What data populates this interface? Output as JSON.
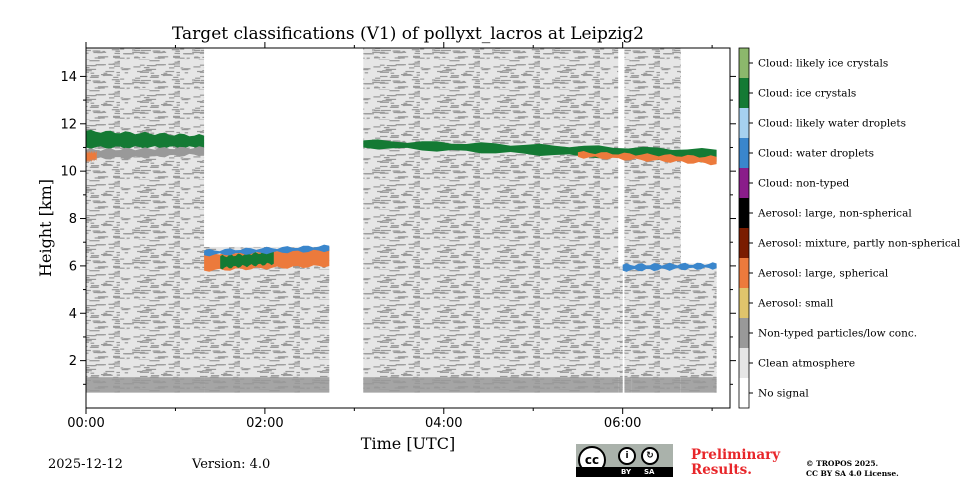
{
  "chart_data": {
    "type": "heatmap",
    "title": "Target classifications (V1) of pollyxt_lacros at Leipzig2",
    "xlabel": "Time [UTC]",
    "ylabel": "Height [km]",
    "xlim": [
      0,
      7.2
    ],
    "ylim": [
      0,
      15.2
    ],
    "x_ticks": [
      {
        "value": 0,
        "label": "00:00"
      },
      {
        "value": 2,
        "label": "02:00"
      },
      {
        "value": 4,
        "label": "04:00"
      },
      {
        "value": 6,
        "label": "06:00"
      }
    ],
    "y_ticks": [
      {
        "value": 2,
        "label": "2"
      },
      {
        "value": 4,
        "label": "4"
      },
      {
        "value": 6,
        "label": "6"
      },
      {
        "value": 8,
        "label": "8"
      },
      {
        "value": 10,
        "label": "10"
      },
      {
        "value": 12,
        "label": "12"
      },
      {
        "value": 14,
        "label": "14"
      }
    ],
    "classes": [
      {
        "value": 0,
        "name": "No signal",
        "color": "#ffffff"
      },
      {
        "value": 1,
        "name": "Clean atmosphere",
        "color": "#e6e6e6"
      },
      {
        "value": 2,
        "name": "Non-typed particles/low conc.",
        "color": "#999999"
      },
      {
        "value": 3,
        "name": "Aerosol: small",
        "color": "#e0c46c"
      },
      {
        "value": 4,
        "name": "Aerosol: large, spherical",
        "color": "#ec7a3c"
      },
      {
        "value": 5,
        "name": "Aerosol: mixture, partly non-spherical",
        "color": "#7a1c00"
      },
      {
        "value": 6,
        "name": "Aerosol: large, non-spherical",
        "color": "#000000"
      },
      {
        "value": 7,
        "name": "Cloud: non-typed",
        "color": "#8a1d8a"
      },
      {
        "value": 8,
        "name": "Cloud: water droplets",
        "color": "#3a86cc"
      },
      {
        "value": 9,
        "name": "Cloud: likely water droplets",
        "color": "#a6d1f0"
      },
      {
        "value": 10,
        "name": "Cloud: ice crystals",
        "color": "#147a34"
      },
      {
        "value": 11,
        "name": "Cloud: likely ice crystals",
        "color": "#8cb86c"
      }
    ],
    "data_segments": [
      {
        "t_start": 0.0,
        "t_end": 1.32,
        "signal_top": 15.2
      },
      {
        "t_start": 1.32,
        "t_end": 2.72,
        "signal_top": 6.8
      },
      {
        "t_start": 3.1,
        "t_end": 5.95,
        "signal_top": 15.2
      },
      {
        "t_start": 5.95,
        "t_end": 6.0,
        "signal_top": 6.0
      },
      {
        "t_start": 6.02,
        "t_end": 6.1,
        "signal_top": 15.2
      },
      {
        "t_start": 6.1,
        "t_end": 6.65,
        "signal_top": 15.2
      },
      {
        "t_start": 6.65,
        "t_end": 7.05,
        "signal_top": 6.1
      }
    ],
    "no_signal_below_km": 0.65,
    "near_ground_class": 2,
    "layers": [
      {
        "t_start": 0.0,
        "t_end": 1.32,
        "bottom_start": 11.0,
        "bottom_end": 11.0,
        "top_start": 11.7,
        "top_end": 11.5,
        "class": 10
      },
      {
        "t_start": 0.0,
        "t_end": 1.32,
        "bottom_start": 10.5,
        "bottom_end": 10.7,
        "top_start": 10.9,
        "top_end": 11.0,
        "class": 2
      },
      {
        "t_start": 0.0,
        "t_end": 0.12,
        "bottom_start": 10.4,
        "bottom_end": 10.5,
        "top_start": 10.8,
        "top_end": 10.8,
        "class": 4
      },
      {
        "t_start": 1.32,
        "t_end": 2.72,
        "bottom_start": 5.8,
        "bottom_end": 6.0,
        "top_start": 6.5,
        "top_end": 6.8,
        "class": 4
      },
      {
        "t_start": 1.5,
        "t_end": 2.1,
        "bottom_start": 5.9,
        "bottom_end": 6.1,
        "top_start": 6.4,
        "top_end": 6.6,
        "class": 10
      },
      {
        "t_start": 1.32,
        "t_end": 2.72,
        "bottom_start": 6.45,
        "bottom_end": 6.65,
        "top_start": 6.65,
        "top_end": 6.85,
        "class": 8
      },
      {
        "t_start": 3.1,
        "t_end": 7.05,
        "bottom_start": 11.0,
        "bottom_end": 10.4,
        "top_start": 11.3,
        "top_end": 10.9,
        "class": 10
      },
      {
        "t_start": 5.5,
        "t_end": 7.05,
        "bottom_start": 10.6,
        "bottom_end": 10.3,
        "top_start": 10.8,
        "top_end": 10.6,
        "class": 4
      },
      {
        "t_start": 6.0,
        "t_end": 7.05,
        "bottom_start": 5.8,
        "bottom_end": 5.9,
        "top_start": 6.05,
        "top_end": 6.1,
        "class": 8
      }
    ]
  },
  "footer": {
    "date": "2025-12-12",
    "version": "Version: 4.0",
    "preliminary_line1": "Preliminary",
    "preliminary_line2": "Results.",
    "copyright_line1": "© TROPOS 2025.",
    "copyright_line2": "CC BY SA 4.0 License.",
    "license_cc": "cc",
    "license_by": "BY",
    "license_sa": "SA"
  }
}
